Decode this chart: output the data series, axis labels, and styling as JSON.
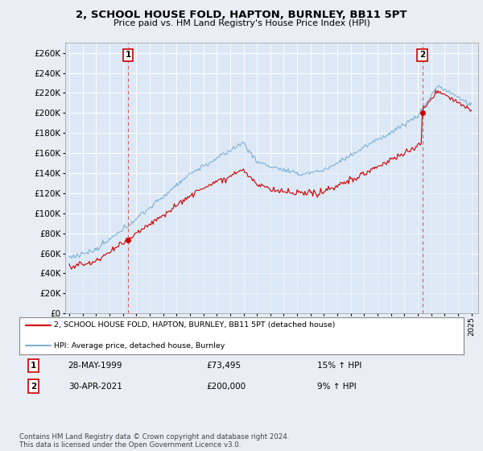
{
  "title": "2, SCHOOL HOUSE FOLD, HAPTON, BURNLEY, BB11 5PT",
  "subtitle": "Price paid vs. HM Land Registry's House Price Index (HPI)",
  "ylabel_ticks": [
    0,
    20000,
    40000,
    60000,
    80000,
    100000,
    120000,
    140000,
    160000,
    180000,
    200000,
    220000,
    240000,
    260000
  ],
  "ylim": [
    0,
    270000
  ],
  "sale1_year": 1999.38,
  "sale1_price": 73495,
  "sale2_year": 2021.33,
  "sale2_price": 200000,
  "line_color_red": "#cc0000",
  "line_color_blue": "#7bafd4",
  "fill_color_blue": "#dce8f5",
  "plot_bg": "#dce8f5",
  "bg_color": "#e8eef4",
  "legend_line1": "2, SCHOOL HOUSE FOLD, HAPTON, BURNLEY, BB11 5PT (detached house)",
  "legend_line2": "HPI: Average price, detached house, Burnley",
  "sale1_date": "28-MAY-1999",
  "sale1_hpi": "15% ↑ HPI",
  "sale2_date": "30-APR-2021",
  "sale2_hpi": "9% ↑ HPI",
  "footer": "Contains HM Land Registry data © Crown copyright and database right 2024.\nThis data is licensed under the Open Government Licence v3.0."
}
